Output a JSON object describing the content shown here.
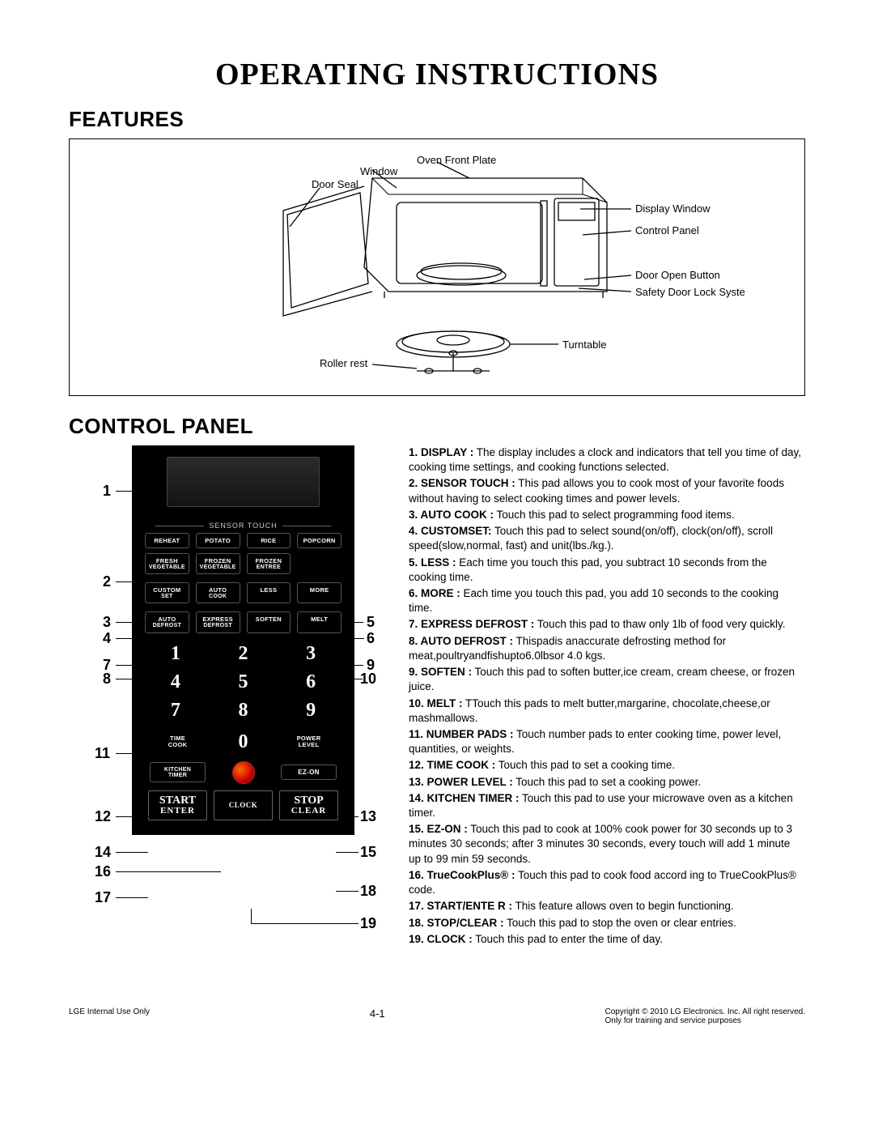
{
  "title": "OPERATING INSTRUCTIONS",
  "sections": {
    "features": "FEATURES",
    "control_panel": "CONTROL PANEL"
  },
  "features_labels": {
    "oven_front_plate": "Oven Front Plate",
    "window": "Window",
    "door_seal": "Door Seal",
    "display_window": "Display Window",
    "control_panel": "Control Panel",
    "door_open_button": "Door Open Button",
    "safety_lock": "Safety Door Lock System",
    "turntable": "Turntable",
    "roller_rest": "Roller rest"
  },
  "panel": {
    "sensor_touch_label": "SENSOR TOUCH",
    "sensor_buttons": [
      "REHEAT",
      "POTATO",
      "RICE",
      "POPCORN",
      "FRESH VEGETABLE",
      "FROZEN VEGETABLE",
      "FROZEN ENTREE"
    ],
    "row2_buttons": [
      "CUSTOM SET",
      "AUTO COOK",
      "LESS",
      "MORE"
    ],
    "row3_buttons": [
      "AUTO DEFROST",
      "EXPRESS DEFROST",
      "SOFTEN",
      "MELT"
    ],
    "numbers": [
      "1",
      "2",
      "3",
      "4",
      "5",
      "6",
      "7",
      "8",
      "9"
    ],
    "time_cook": "TIME COOK",
    "zero": "0",
    "power_level": "POWER LEVEL",
    "kitchen_timer": "KITCHEN TIMER",
    "ez_on": "EZ-ON",
    "start": "START",
    "enter": "ENTER",
    "clock": "CLOCK",
    "stop": "STOP",
    "clear": "CLEAR",
    "truecook": "TrueCookPlus"
  },
  "callouts": {
    "1": "1",
    "2": "2",
    "3": "3",
    "4": "4",
    "5": "5",
    "6": "6",
    "7": "7",
    "8": "8",
    "9": "9",
    "10": "10",
    "11": "11",
    "12": "12",
    "13": "13",
    "14": "14",
    "15": "15",
    "16": "16",
    "17": "17",
    "18": "18",
    "19": "19"
  },
  "descriptions": [
    {
      "n": "1.",
      "b": "DISPLAY :",
      "t": " The display includes a clock and indicators that tell you time of day, cooking time settings, and cooking functions selected."
    },
    {
      "n": "2.",
      "b": "SENSOR TOUCH :",
      "t": " This pad allows you to cook most of your favorite foods without having to select cooking times and power levels."
    },
    {
      "n": "3.",
      "b": "AUTO COOK :",
      "t": " Touch this pad to select programming food items."
    },
    {
      "n": "4.",
      "b": "CUSTOMSET:",
      "t": " Touch this pad to select sound(on/off), clock(on/off), scroll speed(slow,normal, fast) and unit(lbs./kg.)."
    },
    {
      "n": "5.",
      "b": "LESS :",
      "t": " Each time you touch this pad, you subtract 10 seconds from the cooking time."
    },
    {
      "n": "6.",
      "b": "MORE :",
      "t": " Each time you touch this pad, you add 10 seconds to the cooking time."
    },
    {
      "n": "7.",
      "b": "EXPRESS DEFROST :",
      "t": " Touch this pad to thaw only 1lb of food very quickly."
    },
    {
      "n": "8.",
      "b": "AUTO DEFROST :",
      "t": " Thispadis anaccurate defrosting method for meat,poultryandfishupto6.0lbsor 4.0 kgs."
    },
    {
      "n": "9.",
      "b": "SOFTEN :",
      "t": " Touch this pad to soften butter,ice cream, cream cheese, or frozen juice."
    },
    {
      "n": "10.",
      "b": "MELT :",
      "t": " TTouch this pads to melt butter,margarine, chocolate,cheese,or mashmallows."
    },
    {
      "n": "11.",
      "b": "NUMBER PADS :",
      "t": " Touch number pads to enter cooking time, power level, quantities, or weights."
    },
    {
      "n": "12.",
      "b": "TIME COOK :",
      "t": " Touch this pad to set a cooking time."
    },
    {
      "n": "13.",
      "b": "POWER LEVEL :",
      "t": " Touch this pad to set a cooking power."
    },
    {
      "n": "14.",
      "b": "KITCHEN TIMER :",
      "t": " Touch this pad to use your microwave oven as a kitchen timer."
    },
    {
      "n": "15.",
      "b": "EZ-ON :",
      "t": " Touch this pad to cook at 100% cook power for 30 seconds up to 3 minutes 30 seconds; after 3 minutes 30 seconds, every touch will add 1 minute up to 99 min 59 seconds."
    },
    {
      "n": "16.",
      "b": "TrueCookPlus® :",
      "t": " Touch this pad to cook food accord ing to TrueCookPlus® code."
    },
    {
      "n": "17.",
      "b": "START/ENTE R :",
      "t": " This feature allows oven to begin functioning."
    },
    {
      "n": "18.",
      "b": "STOP/CLEAR :",
      "t": " Touch this pad to stop the oven or clear entries."
    },
    {
      "n": "19.",
      "b": "CLOCK :",
      "t": " Touch this pad to enter the time of day."
    }
  ],
  "footer": {
    "left": "LGE Internal Use Only",
    "center": "4-1",
    "right1": "Copyright © 2010 LG Electronics. Inc. All right reserved.",
    "right2": "Only for training and service purposes"
  },
  "colors": {
    "panel_bg": "#000000",
    "text": "#000000",
    "white": "#ffffff",
    "circle_grad_1": "#ff6a00",
    "circle_grad_2": "#cc0000"
  }
}
